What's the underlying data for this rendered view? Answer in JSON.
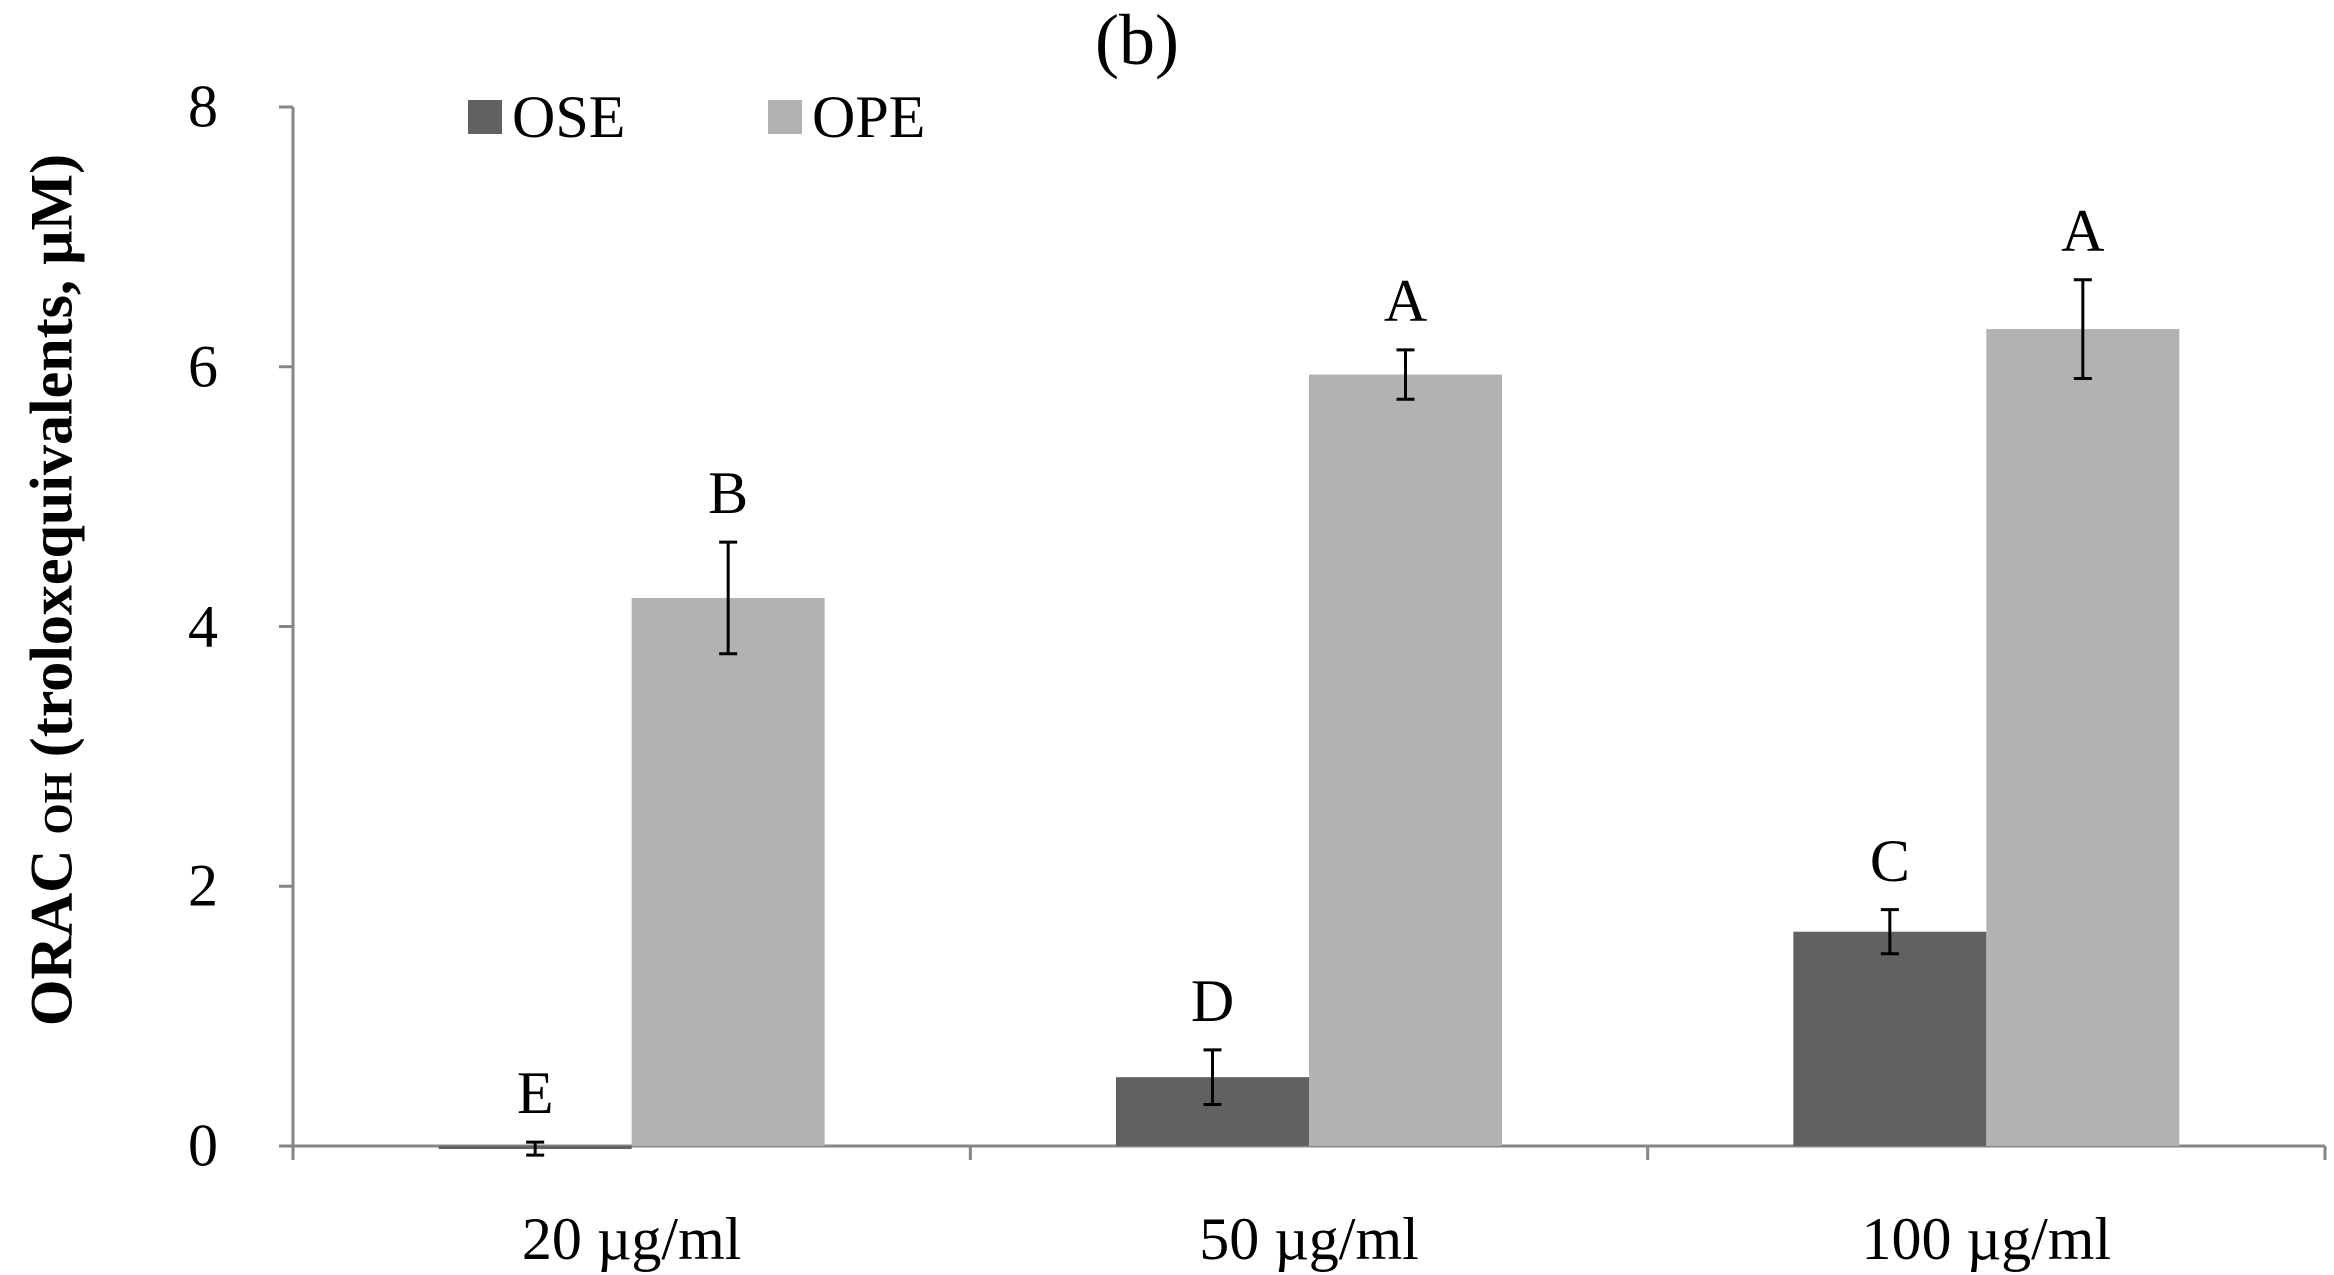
{
  "chart_data": {
    "type": "bar",
    "title": "(b)",
    "ylabel_main": "ORAC",
    "ylabel_sub": "OH",
    "ylabel_rest": " (troloxequivalents, µM)",
    "xlabel": "",
    "categories": [
      "20 µg/ml",
      "50 µg/ml",
      "100 µg/ml"
    ],
    "ylim": [
      0,
      8
    ],
    "yticks": [
      "0",
      "2",
      "4",
      "6",
      "8"
    ],
    "series": [
      {
        "name": "OSE",
        "color": "#616161",
        "values": [
          -0.02,
          0.53,
          1.65
        ],
        "errors": [
          0.05,
          0.21,
          0.17
        ],
        "letters": [
          "E",
          "D",
          "C"
        ]
      },
      {
        "name": "OPE",
        "color": "#b2b2b2",
        "values": [
          4.22,
          5.94,
          6.29
        ],
        "errors": [
          0.43,
          0.19,
          0.38
        ],
        "letters": [
          "B",
          "A",
          "A"
        ]
      }
    ],
    "legend_position": "top-left",
    "grid": false
  }
}
